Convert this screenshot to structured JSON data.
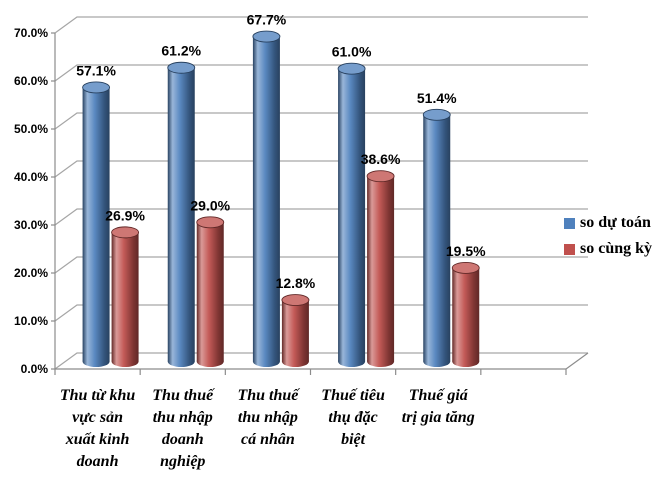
{
  "chart_data": {
    "type": "bar",
    "variant": "3d-cylinder-clustered",
    "title": "",
    "xlabel": "",
    "ylabel": "",
    "ylim": [
      0,
      70
    ],
    "y_tick_labels": [
      "0.0%",
      "10.0%",
      "20.0%",
      "30.0%",
      "40.0%",
      "50.0%",
      "60.0%",
      "70.0%"
    ],
    "grid": true,
    "legend_position": "right",
    "categories": [
      "Thu từ khu\nvực sản\nxuất kinh\ndoanh",
      "Thu thuế\nthu nhập\ndoanh\nnghiệp",
      "Thu thuế\nthu nhập\ncá nhân",
      "Thuế tiêu\nthụ đặc\nbiệt",
      "Thuế giá\ntrị gia tăng"
    ],
    "series": [
      {
        "name": "so dự toán",
        "color": "#4F81BD",
        "values": [
          57.1,
          61.2,
          67.7,
          61.0,
          51.4
        ],
        "labels": [
          "57.1%",
          "61.2%",
          "67.7%",
          "61.0%",
          "51.4%"
        ]
      },
      {
        "name": "so cùng kỳ",
        "color": "#C0504D",
        "values": [
          26.9,
          29.0,
          12.8,
          38.6,
          19.5
        ],
        "labels": [
          "26.9%",
          "29.0%",
          "12.8%",
          "38.6%",
          "19.5%"
        ]
      }
    ],
    "colors": {
      "gridline": "#A6A6A6",
      "axis": "#8C8C8C",
      "label_text": "#000000",
      "background": "#FFFFFF"
    }
  }
}
